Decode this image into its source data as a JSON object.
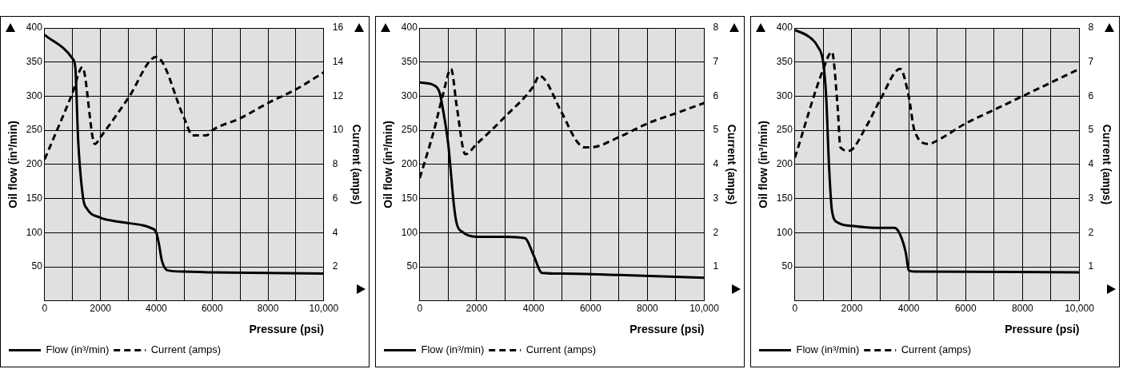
{
  "chart_data": [
    {
      "type": "line",
      "xlabel": "Pressure (psi)",
      "ylabel": "Oil flow (in³/min)",
      "y2label": "Current (amps)",
      "xlim": [
        0,
        10000
      ],
      "xticks": [
        0,
        {
          "value": 1000,
          "label": null
        },
        2000,
        {
          "value": 3000,
          "label": null
        },
        4000,
        {
          "value": 5000,
          "label": null
        },
        6000,
        {
          "value": 7000,
          "label": null
        },
        8000,
        {
          "value": 9000,
          "label": null
        },
        {
          "value": 10000,
          "label": "10,000"
        }
      ],
      "ylim": [
        0,
        400
      ],
      "yticks": [
        50,
        100,
        150,
        200,
        250,
        300,
        350,
        400
      ],
      "y2lim": [
        0,
        16
      ],
      "y2ticks": [
        2,
        4,
        6,
        8,
        10,
        12,
        14,
        16
      ],
      "grid": true,
      "legend": "bottom left",
      "marker": "none",
      "series": [
        {
          "name": "Flow (in³/min)",
          "color": "#000000",
          "line_style": "solid",
          "x": [
            0,
            1000,
            1100,
            1200,
            1380,
            1500,
            2000,
            2500,
            3000,
            3500,
            3800,
            4000,
            4100,
            4200,
            4400,
            5000,
            6000,
            8000,
            10000
          ],
          "values": [
            390,
            355,
            341,
            236,
            150,
            136,
            122,
            117,
            114,
            111,
            107,
            100,
            82,
            59,
            45,
            43,
            42,
            41,
            40
          ]
        },
        {
          "name": "Current (amps)",
          "color": "#000000",
          "line_style": "dashed",
          "axis": "y2",
          "x": [
            0,
            1000,
            1350,
            1800,
            2000,
            3000,
            4000,
            5000,
            5300,
            5800,
            6000,
            7000,
            8000,
            9000,
            10000
          ],
          "values": [
            8.3,
            12.2,
            13.7,
            9.2,
            9.6,
            11.9,
            14.3,
            10.7,
            9.7,
            9.7,
            10,
            10.7,
            11.6,
            12.4,
            13.4
          ]
        }
      ]
    },
    {
      "type": "line",
      "xlabel": "Pressure (psi)",
      "ylabel": "Oil flow (in³/min)",
      "y2label": "Current (amps)",
      "xlim": [
        0,
        10000
      ],
      "xticks": [
        0,
        {
          "value": 1000,
          "label": null
        },
        2000,
        {
          "value": 3000,
          "label": null
        },
        4000,
        {
          "value": 5000,
          "label": null
        },
        6000,
        {
          "value": 7000,
          "label": null
        },
        8000,
        {
          "value": 9000,
          "label": null
        },
        {
          "value": 10000,
          "label": "10,000"
        }
      ],
      "ylim": [
        0,
        400
      ],
      "yticks": [
        50,
        100,
        150,
        200,
        250,
        300,
        350,
        400
      ],
      "y2lim": [
        0,
        8
      ],
      "y2ticks": [
        1,
        2,
        3,
        4,
        5,
        6,
        7,
        8
      ],
      "grid": true,
      "legend": "bottom left",
      "marker": "none",
      "series": [
        {
          "name": "Flow (in³/min)",
          "color": "#000000",
          "line_style": "solid",
          "x": [
            0,
            500,
            700,
            800,
            1000,
            1100,
            1200,
            1300,
            1500,
            2000,
            3000,
            3700,
            4000,
            4300,
            5000,
            7000,
            10000
          ],
          "values": [
            320,
            316,
            305,
            284,
            230,
            185,
            140,
            113,
            101,
            94,
            94,
            92,
            67,
            41,
            40,
            38,
            34
          ]
        },
        {
          "name": "Current (amps)",
          "color": "#000000",
          "line_style": "dashed",
          "axis": "y2",
          "x": [
            0,
            500,
            800,
            1100,
            1300,
            1600,
            2000,
            3000,
            4000,
            4200,
            5000,
            5500,
            5800,
            6000,
            7000,
            8000,
            9000,
            10000
          ],
          "values": [
            3.6,
            5.0,
            6.0,
            6.8,
            5.7,
            4.3,
            4.6,
            5.4,
            6.3,
            6.6,
            5.5,
            4.7,
            4.5,
            4.5,
            4.8,
            5.2,
            5.5,
            5.8
          ]
        }
      ]
    },
    {
      "type": "line",
      "xlabel": "Pressure (psi)",
      "ylabel": "Oil flow (in³/min)",
      "y2label": "Current (amps)",
      "xlim": [
        0,
        10000
      ],
      "xticks": [
        0,
        {
          "value": 1000,
          "label": null
        },
        2000,
        {
          "value": 3000,
          "label": null
        },
        4000,
        {
          "value": 5000,
          "label": null
        },
        6000,
        {
          "value": 7000,
          "label": null
        },
        8000,
        {
          "value": 9000,
          "label": null
        },
        {
          "value": 10000,
          "label": "10,000"
        }
      ],
      "ylim": [
        0,
        400
      ],
      "yticks": [
        50,
        100,
        150,
        200,
        250,
        300,
        350,
        400
      ],
      "y2lim": [
        0,
        8
      ],
      "y2ticks": [
        1,
        2,
        3,
        4,
        5,
        6,
        7,
        8
      ],
      "grid": true,
      "legend": "bottom left",
      "marker": "none",
      "series": [
        {
          "name": "Flow (in³/min)",
          "color": "#000000",
          "line_style": "solid",
          "x": [
            0,
            500,
            800,
            1000,
            1100,
            1200,
            1300,
            1500,
            2000,
            3000,
            3500,
            3700,
            3900,
            4000,
            4200,
            10000
          ],
          "values": [
            397,
            387,
            373,
            348,
            298,
            197,
            133,
            115,
            110,
            107,
            107,
            97,
            70,
            45,
            43,
            42
          ]
        },
        {
          "name": "Current (amps)",
          "color": "#000000",
          "line_style": "dashed",
          "axis": "y2",
          "x": [
            0,
            1000,
            1300,
            1500,
            1600,
            1900,
            2500,
            3000,
            3700,
            4000,
            4200,
            4700,
            5000,
            6000,
            7000,
            8000,
            9000,
            10000
          ],
          "values": [
            4.2,
            6.8,
            7.3,
            5.7,
            4.5,
            4.4,
            5.1,
            5.9,
            6.8,
            6.0,
            5.0,
            4.6,
            4.7,
            5.2,
            5.6,
            6.0,
            6.4,
            6.8
          ]
        }
      ]
    }
  ]
}
